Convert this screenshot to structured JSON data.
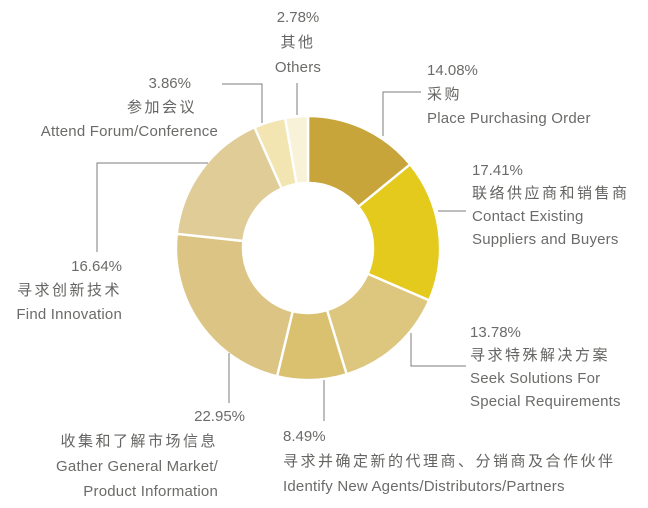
{
  "chart_data": {
    "type": "pie",
    "subtype": "donut",
    "title": "",
    "unit": "%",
    "start_angle_deg": 0,
    "direction": "clockwise",
    "hole_color": "#ffffff",
    "separator_color": "#ffffff",
    "leader_line_color": "#7c7c7a",
    "text_color": "#6b6b69",
    "segments": [
      {
        "id": "place-purchasing-order",
        "pct_label": "14.08%",
        "value": 14.08,
        "label_zh": "采购",
        "label_en": [
          "Place Purchasing Order"
        ],
        "color": "#c7a53a"
      },
      {
        "id": "contact-existing-suppliers-buyers",
        "pct_label": "17.41%",
        "value": 17.41,
        "label_zh": "联络供应商和销售商",
        "label_en": [
          "Contact Existing",
          "Suppliers and Buyers"
        ],
        "color": "#e3ca1d"
      },
      {
        "id": "seek-solutions-special-requirements",
        "pct_label": "13.78%",
        "value": 13.78,
        "label_zh": "寻求特殊解决方案",
        "label_en": [
          "Seek Solutions For",
          "Special Requirements"
        ],
        "color": "#ddc67e"
      },
      {
        "id": "identify-new-agents-distributors-partners",
        "pct_label": "8.49%",
        "value": 8.49,
        "label_zh": "寻求并确定新的代理商、分销商及合作伙伴",
        "label_en": [
          "Identify New Agents/Distributors/Partners"
        ],
        "color": "#d9c170"
      },
      {
        "id": "gather-general-market-product-information",
        "pct_label": "22.95%",
        "value": 22.95,
        "label_zh": "收集和了解市场信息",
        "label_en": [
          "Gather General Market/",
          "Product Information"
        ],
        "color": "#dcc584"
      },
      {
        "id": "find-innovation",
        "pct_label": "16.64%",
        "value": 16.64,
        "label_zh": "寻求创新技术",
        "label_en": [
          "Find Innovation"
        ],
        "color": "#e0cc97"
      },
      {
        "id": "attend-forum-conference",
        "pct_label": "3.86%",
        "value": 3.86,
        "label_zh": "参加会议",
        "label_en": [
          "Attend Forum/Conference"
        ],
        "color": "#f2e5b1"
      },
      {
        "id": "others",
        "pct_label": "2.78%",
        "value": 2.78,
        "label_zh": "其他",
        "label_en": [
          "Others"
        ],
        "color": "#f7f2d8"
      }
    ]
  }
}
